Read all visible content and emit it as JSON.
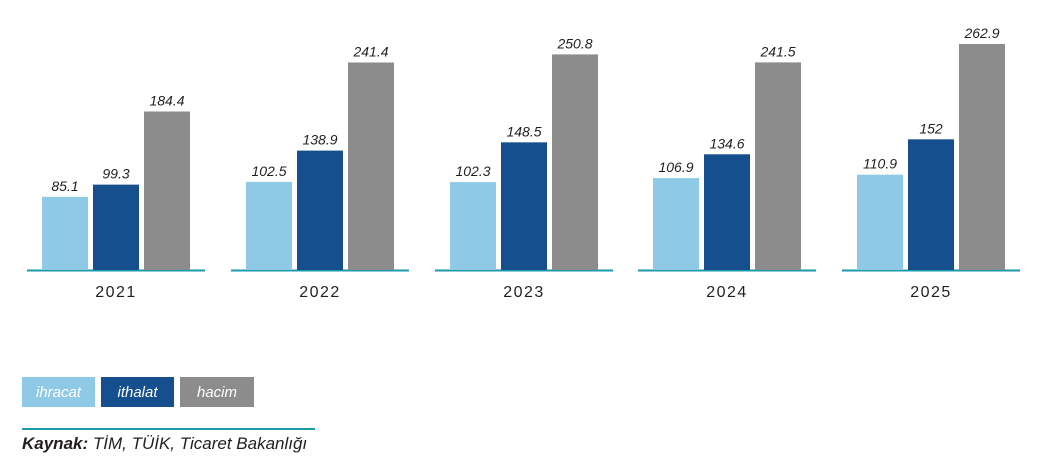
{
  "chart_data": {
    "type": "bar",
    "categories": [
      "2021",
      "2022",
      "2023",
      "2024",
      "2025"
    ],
    "series": [
      {
        "name": "ihracat",
        "color": "#8ecae6",
        "values": [
          85.1,
          102.5,
          102.3,
          106.9,
          110.9
        ]
      },
      {
        "name": "ithalat",
        "color": "#164f8e",
        "values": [
          99.3,
          138.9,
          148.5,
          134.6,
          152
        ]
      },
      {
        "name": "hacim",
        "color": "#8c8c8c",
        "values": [
          184.4,
          241.4,
          250.8,
          241.5,
          262.9
        ]
      }
    ],
    "value_labels": [
      [
        "85.1",
        "102.5",
        "102.3",
        "106.9",
        "110.9"
      ],
      [
        "99.3",
        "138.9",
        "148.5",
        "134.6",
        "152"
      ],
      [
        "184.4",
        "241.4",
        "250.8",
        "241.5",
        "262.9"
      ]
    ],
    "ylim": [
      0,
      262.9
    ],
    "grid": false,
    "legend_position": "bottom-left",
    "baseline_color": "#1b9aaa"
  },
  "legend": {
    "ihracat": "ihracat",
    "ithalat": "ithalat",
    "hacim": "hacim"
  },
  "source": {
    "key": "Kaynak:",
    "text": " TİM, TÜİK, Ticaret Bakanlığı"
  }
}
